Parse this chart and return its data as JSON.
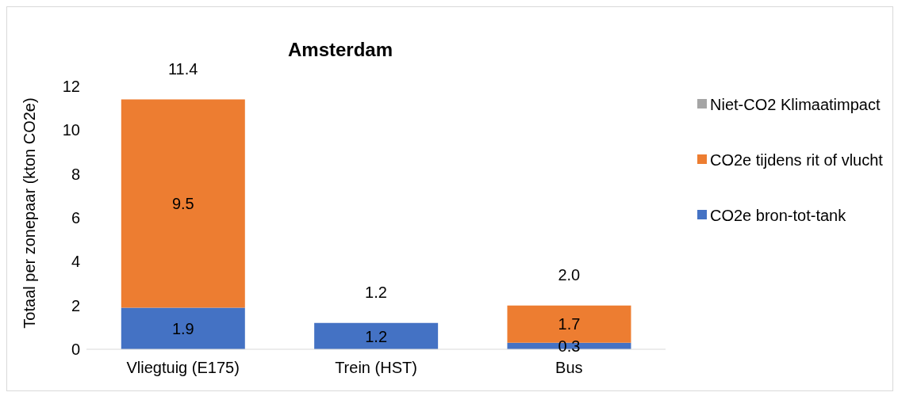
{
  "chart_data": {
    "type": "bar",
    "title": "Amsterdam",
    "ylabel": "Totaal per zonepaar (kton CO2e)",
    "categories": [
      "Vliegtuig (E175)",
      "Trein (HST)",
      "Bus"
    ],
    "stacked": true,
    "series": [
      {
        "name": "CO2e bron-tot-tank",
        "color": "#4472c4",
        "values": [
          1.9,
          1.2,
          0.3
        ],
        "value_labels": [
          "1.9",
          "1.2",
          "0.3"
        ]
      },
      {
        "name": "CO2e tijdens rit of vlucht",
        "color": "#ed7d31",
        "values": [
          9.5,
          null,
          1.7
        ],
        "value_labels": [
          "9.5",
          null,
          "1.7"
        ]
      },
      {
        "name": "Niet-CO2 Klimaatimpact",
        "color": "#a5a5a5",
        "values": [
          0,
          0,
          0
        ],
        "value_labels": [
          null,
          null,
          null
        ]
      }
    ],
    "totals": [
      "11.4",
      "1.2",
      "2.0"
    ],
    "ylim": [
      0,
      12
    ],
    "yticks": [
      0,
      2,
      4,
      6,
      8,
      10,
      12
    ],
    "grid": false,
    "legend": "right"
  }
}
